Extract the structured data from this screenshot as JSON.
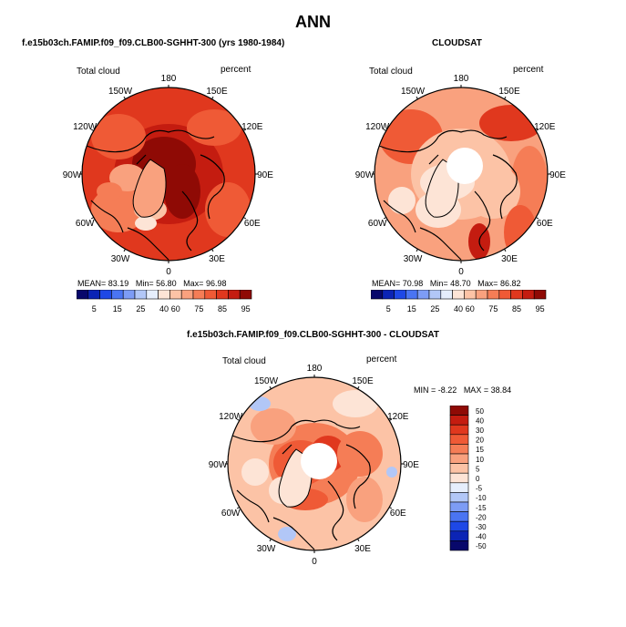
{
  "title": "ANN",
  "colors": {
    "seq": [
      "#08086b",
      "#0b24b5",
      "#1e48e6",
      "#4a74f2",
      "#7d9cf5",
      "#b2c7f7",
      "#e6eefc",
      "#fde4d6",
      "#fcc3a6",
      "#f9a17e",
      "#f57d56",
      "#ef5a36",
      "#e0381e",
      "#c41c10",
      "#8f0a05"
    ],
    "div": [
      "#8f0a05",
      "#c41c10",
      "#e0381e",
      "#ef5a36",
      "#f57d56",
      "#f9a17e",
      "#fcc3a6",
      "#fde4d6",
      "#e6eefc",
      "#b2c7f7",
      "#7d9cf5",
      "#4a74f2",
      "#1e48e6",
      "#0b24b5",
      "#08086b"
    ]
  },
  "panels": [
    {
      "title": "f.e15b03ch.FAMIP.f09_f09.CLB00-SGHHT-300 (yrs 1980-1984)",
      "variable": "Total cloud",
      "units": "percent",
      "mean_label": "MEAN=",
      "mean": "83.19",
      "min_label": "Min=",
      "min": "56.80",
      "max_label": "Max=",
      "max": "96.98",
      "colorbar_labels": [
        "5",
        "15",
        "25",
        "40",
        "60",
        "75",
        "85",
        "95"
      ]
    },
    {
      "title": "CLOUDSAT",
      "variable": "Total cloud",
      "units": "percent",
      "mean_label": "MEAN=",
      "mean": "70.98",
      "min_label": "Min=",
      "min": "48.70",
      "max_label": "Max=",
      "max": "86.82",
      "colorbar_labels": [
        "5",
        "15",
        "25",
        "40",
        "60",
        "75",
        "85",
        "95"
      ]
    },
    {
      "title": "f.e15b03ch.FAMIP.f09_f09.CLB00-SGHHT-300 - CLOUDSAT",
      "variable": "Total cloud",
      "units": "percent",
      "min_label": "MIN =",
      "min": "-8.22",
      "max_label": "MAX =",
      "max": "38.84",
      "colorbar_labels": [
        "50",
        "40",
        "30",
        "20",
        "15",
        "10",
        "5",
        "0",
        "-5",
        "-10",
        "-15",
        "-20",
        "-30",
        "-40",
        "-50"
      ]
    }
  ],
  "longitude_labels": [
    "180",
    "150E",
    "120E",
    "90E",
    "60E",
    "30E",
    "0",
    "30W",
    "60W",
    "90W",
    "120W",
    "150W"
  ]
}
